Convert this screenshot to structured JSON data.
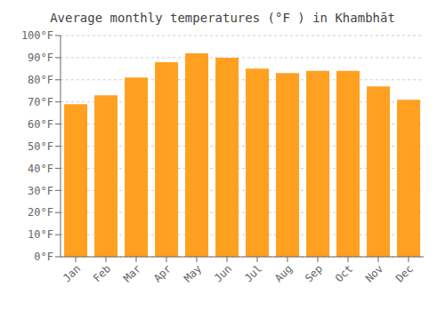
{
  "chart_data": {
    "type": "bar",
    "title": "Average monthly temperatures (°F ) in Khambhāt",
    "categories": [
      "Jan",
      "Feb",
      "Mar",
      "Apr",
      "May",
      "Jun",
      "Jul",
      "Aug",
      "Sep",
      "Oct",
      "Nov",
      "Dec"
    ],
    "values": [
      69,
      73,
      81,
      88,
      92,
      90,
      85,
      83,
      84,
      84,
      77,
      71
    ],
    "color": "#FFA020",
    "ylim": [
      0,
      100
    ],
    "yticks": [
      {
        "value": 0,
        "label": "0°F"
      },
      {
        "value": 10,
        "label": "10°F"
      },
      {
        "value": 20,
        "label": "20°F"
      },
      {
        "value": 30,
        "label": "30°F"
      },
      {
        "value": 40,
        "label": "40°F"
      },
      {
        "value": 50,
        "label": "50°F"
      },
      {
        "value": 60,
        "label": "60°F"
      },
      {
        "value": 70,
        "label": "70°F"
      },
      {
        "value": 80,
        "label": "80°F"
      },
      {
        "value": 90,
        "label": "90°F"
      },
      {
        "value": 100,
        "label": "100°F"
      }
    ],
    "grid": true
  }
}
